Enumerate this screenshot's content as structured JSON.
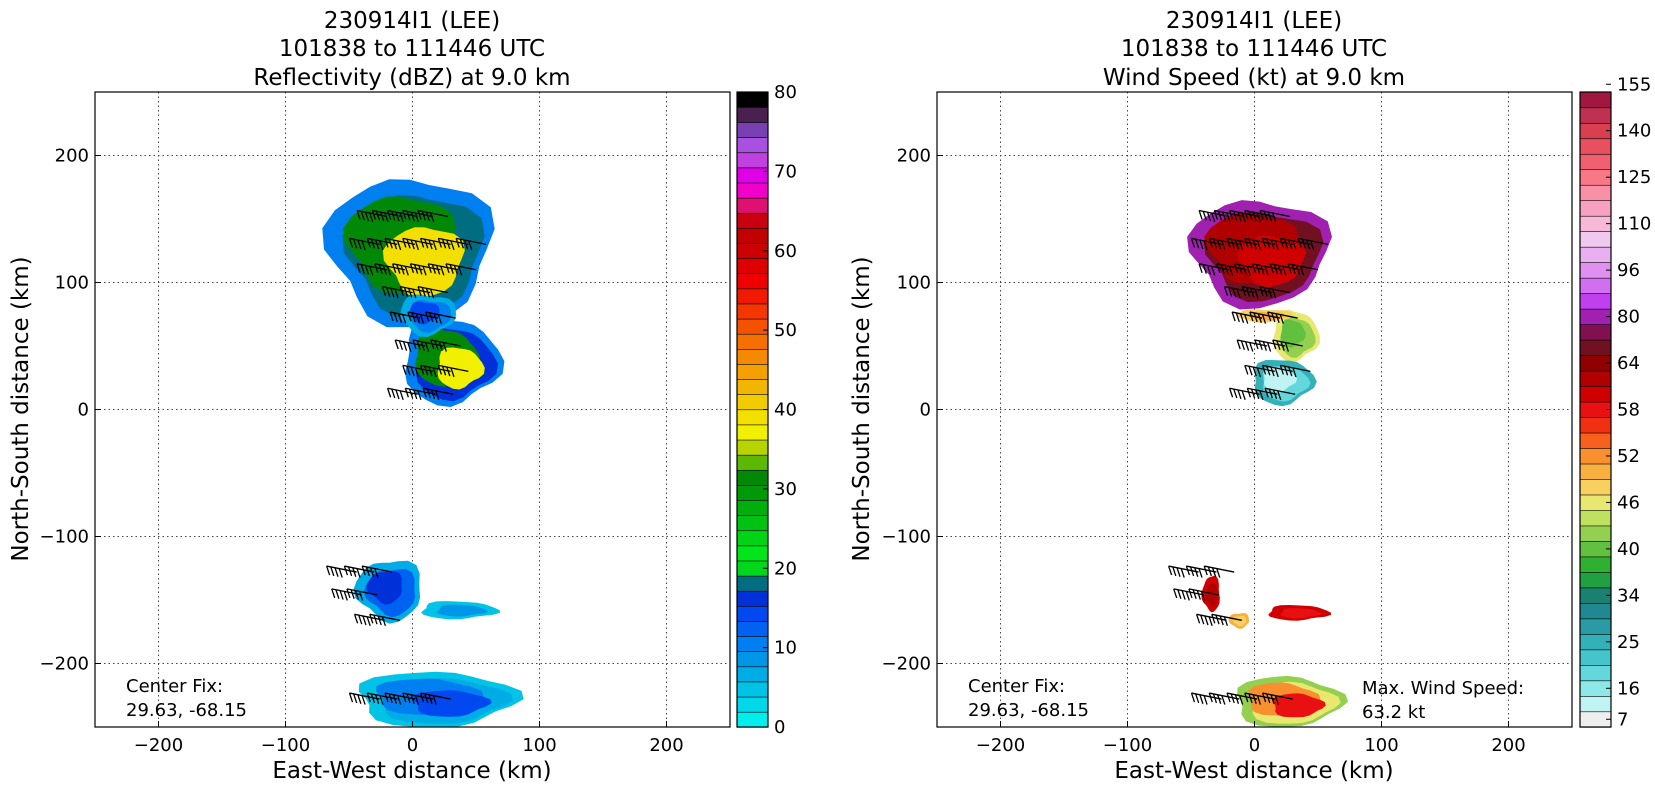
{
  "chart_data": [
    {
      "type": "heatmap",
      "title_lines": [
        "230914I1 (LEE)",
        "101838 to 111446 UTC",
        "Reflectivity (dBZ) at 9.0 km"
      ],
      "xlabel": "East-West distance (km)",
      "ylabel": "North-South distance (km)",
      "xlim": [
        -250,
        250
      ],
      "ylim": [
        -250,
        250
      ],
      "xticks": [
        -200,
        -100,
        0,
        100,
        200
      ],
      "yticks": [
        -200,
        -100,
        0,
        100,
        200
      ],
      "grid": true,
      "annotations": [
        {
          "text_lines": [
            "Center Fix:",
            "29.63, -68.15"
          ],
          "position": "bottom-left"
        }
      ],
      "colorbar": {
        "label_values": [
          0,
          10,
          20,
          30,
          40,
          50,
          60,
          70,
          80
        ],
        "colors": [
          "#00eeee",
          "#00d8ea",
          "#00c3e6",
          "#00ace6",
          "#0096e8",
          "#007ff0",
          "#0062f0",
          "#0048f0",
          "#0030d8",
          "#006d80",
          "#00d61c",
          "#00e61a",
          "#00d414",
          "#00c210",
          "#00ae0c",
          "#009a08",
          "#008806",
          "#5cb800",
          "#b8d400",
          "#f0f000",
          "#f4e000",
          "#f0cc00",
          "#f0b600",
          "#f4a000",
          "#f48a00",
          "#f47000",
          "#f45200",
          "#f43600",
          "#f01a00",
          "#f00000",
          "#de0000",
          "#cc0000",
          "#c20000",
          "#c80010",
          "#de1070",
          "#f000c8",
          "#e000e8",
          "#c040e0",
          "#a850e0",
          "#7840b0",
          "#4a2050",
          "#000000"
        ]
      },
      "barb_rows": [
        {
          "y": 152,
          "x": [
            -20,
            -8,
            4,
            16,
            28
          ]
        },
        {
          "y": 130,
          "x": [
            -26,
            -12,
            2,
            16,
            30,
            44,
            58
          ]
        },
        {
          "y": 110,
          "x": [
            -20,
            -6,
            8,
            22,
            36,
            50
          ]
        },
        {
          "y": 92,
          "x": [
            0,
            14,
            28
          ]
        },
        {
          "y": 72,
          "x": [
            6,
            20,
            34
          ]
        },
        {
          "y": 50,
          "x": [
            10,
            24,
            38
          ]
        },
        {
          "y": 30,
          "x": [
            16,
            30,
            44
          ]
        },
        {
          "y": 12,
          "x": [
            4,
            18,
            32
          ]
        },
        {
          "y": -128,
          "x": [
            -44,
            -30,
            -16
          ]
        },
        {
          "y": -146,
          "x": [
            -40,
            -28
          ]
        },
        {
          "y": -166,
          "x": [
            -22,
            -10
          ]
        },
        {
          "y": -228,
          "x": [
            -26,
            -12,
            2,
            16,
            30
          ]
        }
      ],
      "regions": [
        {
          "cx": -2,
          "cy": 126,
          "rx": 64,
          "ry": 58,
          "levels": [
            5,
            9,
            16,
            20
          ]
        },
        {
          "cx": 30,
          "cy": 38,
          "rx": 38,
          "ry": 34,
          "levels": [
            5,
            8,
            16,
            19
          ]
        },
        {
          "cx": 12,
          "cy": 75,
          "rx": 22,
          "ry": 16,
          "levels": [
            3,
            5,
            7
          ]
        },
        {
          "cx": -18,
          "cy": -142,
          "rx": 26,
          "ry": 24,
          "levels": [
            3,
            6,
            8
          ]
        },
        {
          "cx": 36,
          "cy": -158,
          "rx": 30,
          "ry": 7,
          "levels": [
            2,
            4
          ]
        },
        {
          "cx": 18,
          "cy": -228,
          "rx": 62,
          "ry": 22,
          "levels": [
            2,
            3,
            5,
            7
          ]
        }
      ]
    },
    {
      "type": "heatmap",
      "title_lines": [
        "230914I1 (LEE)",
        "101838 to 111446 UTC",
        "Wind Speed (kt) at 9.0 km"
      ],
      "xlabel": "East-West distance (km)",
      "ylabel": "North-South distance (km)",
      "xlim": [
        -250,
        250
      ],
      "ylim": [
        -250,
        250
      ],
      "xticks": [
        -200,
        -100,
        0,
        100,
        200
      ],
      "yticks": [
        -200,
        -100,
        0,
        100,
        200
      ],
      "grid": true,
      "annotations": [
        {
          "text_lines": [
            "Center Fix:",
            "29.63, -68.15"
          ],
          "position": "bottom-left"
        },
        {
          "text_lines": [
            "Max. Wind Speed:",
            "63.2 kt"
          ],
          "position": "bottom-right"
        }
      ],
      "colorbar": {
        "label_values": [
          7,
          16,
          25,
          34,
          40,
          46,
          52,
          58,
          64,
          80,
          96,
          110,
          125,
          140,
          155
        ],
        "colors": [
          "#eeeeee",
          "#c0f4f4",
          "#8ee8e8",
          "#62d8dc",
          "#46c4cc",
          "#34b0b8",
          "#2a9aa4",
          "#208890",
          "#1a8070",
          "#20a040",
          "#30b030",
          "#62c040",
          "#94d050",
          "#c0e060",
          "#e8e870",
          "#f8d060",
          "#f8b040",
          "#f89030",
          "#f86020",
          "#f03010",
          "#e81010",
          "#d00000",
          "#b00000",
          "#900000",
          "#701020",
          "#801050",
          "#a020b0",
          "#c040f0",
          "#d070f0",
          "#e090f0",
          "#e8b0f0",
          "#f0c8f0",
          "#f8b8d8",
          "#f8a0c0",
          "#f890a8",
          "#f87888",
          "#f06070",
          "#e85060",
          "#d84050",
          "#c03050",
          "#a01840"
        ]
      },
      "barb_rows": [
        {
          "y": 152,
          "x": [
            -20,
            -8,
            4,
            16,
            28
          ]
        },
        {
          "y": 130,
          "x": [
            -26,
            -12,
            2,
            16,
            30,
            44,
            58
          ]
        },
        {
          "y": 110,
          "x": [
            -20,
            -6,
            8,
            22,
            36,
            50
          ]
        },
        {
          "y": 92,
          "x": [
            0,
            14,
            28
          ]
        },
        {
          "y": 72,
          "x": [
            6,
            20,
            34
          ]
        },
        {
          "y": 50,
          "x": [
            10,
            24,
            38
          ]
        },
        {
          "y": 30,
          "x": [
            16,
            30,
            44
          ]
        },
        {
          "y": 12,
          "x": [
            4,
            18,
            32
          ]
        },
        {
          "y": -128,
          "x": [
            -44,
            -30,
            -16
          ]
        },
        {
          "y": -146,
          "x": [
            -40,
            -28
          ]
        },
        {
          "y": -166,
          "x": [
            -22,
            -10
          ]
        },
        {
          "y": -228,
          "x": [
            -26,
            -12,
            2,
            16,
            30
          ]
        }
      ],
      "regions": [
        {
          "cx": 4,
          "cy": 124,
          "rx": 54,
          "ry": 42,
          "levels": [
            26,
            24,
            22,
            21
          ]
        },
        {
          "cx": 32,
          "cy": 58,
          "rx": 18,
          "ry": 20,
          "levels": [
            14,
            12,
            11
          ]
        },
        {
          "cx": 22,
          "cy": 22,
          "rx": 24,
          "ry": 18,
          "levels": [
            5,
            3,
            1
          ]
        },
        {
          "cx": 8,
          "cy": 74,
          "rx": 22,
          "ry": 5,
          "levels": [
            15,
            16
          ]
        },
        {
          "cx": -34,
          "cy": -145,
          "rx": 7,
          "ry": 14,
          "levels": [
            21,
            22
          ]
        },
        {
          "cx": -12,
          "cy": -166,
          "rx": 8,
          "ry": 6,
          "levels": [
            16,
            15
          ]
        },
        {
          "cx": 34,
          "cy": -160,
          "rx": 24,
          "ry": 6,
          "levels": [
            21,
            20
          ]
        },
        {
          "cx": 26,
          "cy": -230,
          "rx": 42,
          "ry": 20,
          "levels": [
            12,
            14,
            17,
            20
          ]
        }
      ]
    }
  ]
}
